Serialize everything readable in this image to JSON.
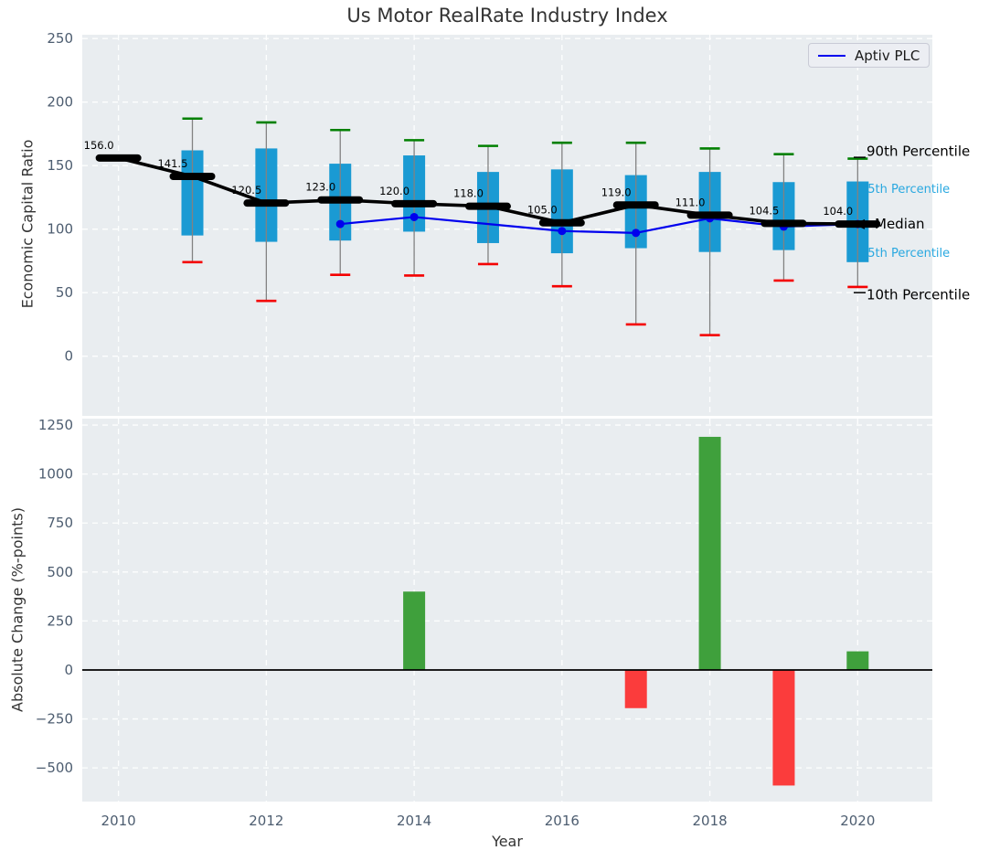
{
  "figure": {
    "title": "Us Motor RealRate Industry Index",
    "legend": {
      "label": "Aptiv PLC"
    }
  },
  "colors": {
    "plot_bg": "#e9edf0",
    "grid": "#ffffff",
    "tick_label": "#4d5d70",
    "text": "#333333",
    "box_fill": "#1a9ad3",
    "whisker": "#828282",
    "cap_high_green": "#008000",
    "cap_low_red": "#f40000",
    "median_black": "#000000",
    "aptiv_blue": "#0000ee",
    "bar_positive_green": "#3fa03c",
    "bar_negative_red": "#fb3c3c",
    "annotation_blue": "#29a8e0"
  },
  "chart_data": [
    {
      "type": "box",
      "title": "Us Motor RealRate Industry Index",
      "ylabel": "Economic Capital Ratio",
      "ylim": [
        -47,
        253
      ],
      "xlim": [
        2009.51,
        2021.01
      ],
      "grid": true,
      "yticks": [
        {
          "v": 0,
          "label": "0"
        },
        {
          "v": 50,
          "label": "50"
        },
        {
          "v": 100,
          "label": "100"
        },
        {
          "v": 150,
          "label": "150"
        },
        {
          "v": 200,
          "label": "200"
        },
        {
          "v": 250,
          "label": "250"
        }
      ],
      "xgrid_years": [
        2010,
        2012,
        2014,
        2016,
        2018,
        2020
      ],
      "boxes": [
        {
          "year": 2010,
          "low": null,
          "q1": null,
          "median": 156.0,
          "q3": null,
          "high": null,
          "label": "156.0"
        },
        {
          "year": 2011,
          "low": 74,
          "q1": 95,
          "median": 141.5,
          "q3": 162,
          "high": 187,
          "label": "141.5"
        },
        {
          "year": 2012,
          "low": 43.5,
          "q1": 90,
          "median": 120.5,
          "q3": 163.5,
          "high": 184,
          "label": "120.5"
        },
        {
          "year": 2013,
          "low": 64,
          "q1": 91,
          "median": 123.0,
          "q3": 151.5,
          "high": 178,
          "label": "123.0"
        },
        {
          "year": 2014,
          "low": 63.5,
          "q1": 98,
          "median": 120.0,
          "q3": 158,
          "high": 170,
          "label": "120.0"
        },
        {
          "year": 2015,
          "low": 72.5,
          "q1": 89,
          "median": 118.0,
          "q3": 145,
          "high": 165.5,
          "label": "118.0"
        },
        {
          "year": 2016,
          "low": 55,
          "q1": 81,
          "median": 105.0,
          "q3": 147,
          "high": 168,
          "label": "105.0"
        },
        {
          "year": 2017,
          "low": 25,
          "q1": 85,
          "median": 119.0,
          "q3": 142.5,
          "high": 168,
          "label": "119.0"
        },
        {
          "year": 2018,
          "low": 16.5,
          "q1": 82,
          "median": 111.0,
          "q3": 145,
          "high": 163.5,
          "label": "111.0"
        },
        {
          "year": 2019,
          "low": 59.5,
          "q1": 83.5,
          "median": 104.5,
          "q3": 137,
          "high": 159,
          "label": "104.5"
        },
        {
          "year": 2020,
          "low": 54.5,
          "q1": 74,
          "median": 104.0,
          "q3": 137.5,
          "high": 155.5,
          "label": "104.0"
        }
      ],
      "series": [
        {
          "name": "Aptiv PLC",
          "x": [
            2013,
            2014,
            2016,
            2017,
            2018,
            2019,
            2020
          ],
          "y": [
            104,
            109.5,
            98.5,
            97,
            108.5,
            102,
            104
          ]
        }
      ],
      "percentile_annotations": [
        {
          "text": "90th Percentile",
          "value": 161.5,
          "x": 948,
          "size": 15,
          "layer": "above",
          "leader_value": 156.5
        },
        {
          "text": "75th Percentile",
          "value": 132,
          "x": 941,
          "size": 13,
          "layer": "below",
          "leader_value": null
        },
        {
          "text": "Median",
          "value": 104.5,
          "x": 957,
          "size": 15,
          "layer": "above",
          "leader_value": null,
          "arrow": true
        },
        {
          "text": "25th Percentile",
          "value": 81.5,
          "x": 941,
          "size": 13,
          "layer": "below",
          "leader_value": null
        },
        {
          "text": "10th Percentile",
          "value": 48.5,
          "x": 948,
          "size": 15,
          "layer": "above",
          "leader_value": 50
        }
      ]
    },
    {
      "type": "bar",
      "xlabel": "Year",
      "ylabel": "Absolute Change (%-points)",
      "ylim": [
        -672,
        1283
      ],
      "grid": true,
      "yticks": [
        {
          "v": -500,
          "label": "−500"
        },
        {
          "v": -250,
          "label": "−250"
        },
        {
          "v": 0,
          "label": "0"
        },
        {
          "v": 250,
          "label": "250"
        },
        {
          "v": 500,
          "label": "500"
        },
        {
          "v": 750,
          "label": "750"
        },
        {
          "v": 1000,
          "label": "1000"
        },
        {
          "v": 1250,
          "label": "1250"
        }
      ],
      "xticks": [
        {
          "v": 2010,
          "label": "2010"
        },
        {
          "v": 2012,
          "label": "2012"
        },
        {
          "v": 2014,
          "label": "2014"
        },
        {
          "v": 2016,
          "label": "2016"
        },
        {
          "v": 2018,
          "label": "2018"
        },
        {
          "v": 2020,
          "label": "2020"
        }
      ],
      "xgrid_years": [
        2010,
        2012,
        2014,
        2016,
        2018,
        2020
      ],
      "bars": [
        {
          "year": 2014,
          "value": 400
        },
        {
          "year": 2017,
          "value": -195
        },
        {
          "year": 2018,
          "value": 1190
        },
        {
          "year": 2019,
          "value": -590
        },
        {
          "year": 2020,
          "value": 95
        }
      ],
      "zero_line": true
    }
  ]
}
